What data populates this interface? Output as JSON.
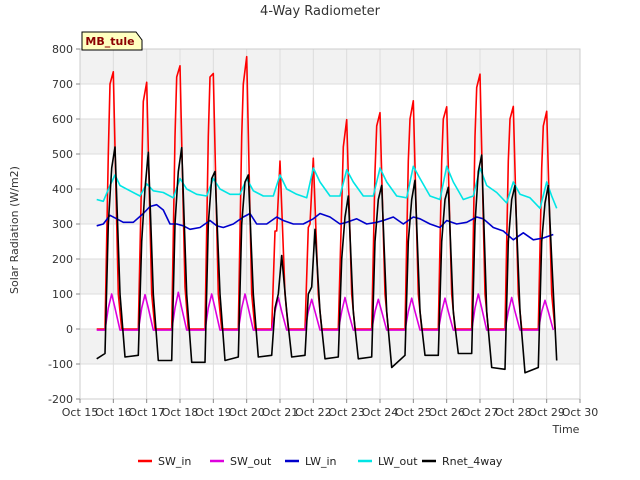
{
  "chart_data": {
    "type": "line",
    "title": "4-Way Radiometer",
    "xlabel": "Time",
    "ylabel": "Solar Radiation (W/m2)",
    "site_label": "MB_tule",
    "xlim": [
      15,
      30
    ],
    "ylim": [
      -200,
      800
    ],
    "x_ticks": [
      {
        "value": 15,
        "label": "Oct 15"
      },
      {
        "value": 16,
        "label": "Oct 16"
      },
      {
        "value": 17,
        "label": "Oct 17"
      },
      {
        "value": 18,
        "label": "Oct 18"
      },
      {
        "value": 19,
        "label": "Oct 19"
      },
      {
        "value": 20,
        "label": "Oct 20"
      },
      {
        "value": 21,
        "label": "Oct 21"
      },
      {
        "value": 22,
        "label": "Oct 22"
      },
      {
        "value": 23,
        "label": "Oct 23"
      },
      {
        "value": 24,
        "label": "Oct 24"
      },
      {
        "value": 25,
        "label": "Oct 25"
      },
      {
        "value": 26,
        "label": "Oct 26"
      },
      {
        "value": 27,
        "label": "Oct 27"
      },
      {
        "value": 28,
        "label": "Oct 28"
      },
      {
        "value": 29,
        "label": "Oct 29"
      },
      {
        "value": 30,
        "label": "Oct 30"
      }
    ],
    "y_ticks": [
      {
        "value": -200,
        "label": "-200"
      },
      {
        "value": -100,
        "label": "-100"
      },
      {
        "value": 0,
        "label": "0"
      },
      {
        "value": 100,
        "label": "100"
      },
      {
        "value": 200,
        "label": "200"
      },
      {
        "value": 300,
        "label": "300"
      },
      {
        "value": 400,
        "label": "400"
      },
      {
        "value": 500,
        "label": "500"
      },
      {
        "value": 600,
        "label": "600"
      },
      {
        "value": 700,
        "label": "700"
      },
      {
        "value": 800,
        "label": "800"
      }
    ],
    "grid": true,
    "legend_position": "bottom",
    "series": [
      {
        "name": "SW_in",
        "color": "#ff0000",
        "x": [
          15.5,
          15.75,
          15.85,
          15.9,
          16.0,
          16.15,
          16.25,
          16.75,
          16.85,
          16.9,
          17.0,
          17.15,
          17.25,
          17.75,
          17.85,
          17.9,
          18.0,
          18.15,
          18.25,
          18.75,
          18.85,
          18.9,
          19.0,
          19.15,
          19.25,
          19.75,
          19.85,
          19.9,
          20.0,
          20.15,
          20.25,
          20.75,
          20.85,
          20.9,
          21.0,
          21.15,
          21.25,
          21.75,
          21.85,
          21.9,
          22.0,
          22.15,
          22.25,
          22.75,
          22.85,
          22.9,
          23.0,
          23.15,
          23.25,
          23.75,
          23.85,
          23.9,
          24.0,
          24.15,
          24.25,
          24.75,
          24.85,
          24.9,
          25.0,
          25.15,
          25.25,
          25.75,
          25.85,
          25.9,
          26.0,
          26.15,
          26.25,
          26.75,
          26.85,
          26.9,
          27.0,
          27.15,
          27.25,
          27.75,
          27.85,
          27.9,
          28.0,
          28.15,
          28.25,
          28.75,
          28.85,
          28.9,
          29.0,
          29.15,
          29.25
        ],
        "y": [
          0,
          0,
          500,
          700,
          735,
          100,
          0,
          0,
          450,
          650,
          705,
          100,
          0,
          0,
          550,
          720,
          752,
          120,
          0,
          0,
          550,
          720,
          730,
          100,
          0,
          0,
          550,
          700,
          778,
          100,
          0,
          0,
          280,
          280,
          480,
          100,
          0,
          0,
          290,
          300,
          488,
          100,
          0,
          0,
          350,
          520,
          598,
          100,
          0,
          0,
          450,
          580,
          618,
          100,
          0,
          0,
          480,
          600,
          652,
          100,
          0,
          0,
          480,
          600,
          635,
          100,
          0,
          0,
          550,
          690,
          728,
          100,
          0,
          0,
          480,
          600,
          636,
          100,
          0,
          0,
          460,
          580,
          622,
          100,
          0
        ]
      },
      {
        "name": "SW_out",
        "color": "#dd00dd",
        "x": [
          15.5,
          15.75,
          15.85,
          15.95,
          16.05,
          16.2,
          16.75,
          16.85,
          16.95,
          17.05,
          17.2,
          17.75,
          17.85,
          17.95,
          18.05,
          18.2,
          18.75,
          18.85,
          18.95,
          19.05,
          19.2,
          19.75,
          19.85,
          19.95,
          20.05,
          20.2,
          20.75,
          20.85,
          20.95,
          21.05,
          21.2,
          21.75,
          21.85,
          21.95,
          22.05,
          22.2,
          22.75,
          22.85,
          22.95,
          23.05,
          23.2,
          23.75,
          23.85,
          23.95,
          24.05,
          24.2,
          24.75,
          24.85,
          24.95,
          25.05,
          25.2,
          25.75,
          25.85,
          25.95,
          26.05,
          26.2,
          26.75,
          26.85,
          26.95,
          27.05,
          27.2,
          27.75,
          27.85,
          27.95,
          28.05,
          28.2,
          28.75,
          28.85,
          28.95,
          29.05,
          29.2
        ],
        "y": [
          -3,
          -3,
          60,
          100,
          60,
          -3,
          -3,
          60,
          98,
          60,
          -3,
          -3,
          60,
          105,
          60,
          -3,
          -3,
          60,
          100,
          60,
          -3,
          -3,
          60,
          100,
          60,
          -3,
          -3,
          50,
          90,
          50,
          -3,
          -3,
          50,
          85,
          50,
          -3,
          -3,
          50,
          90,
          50,
          -3,
          -3,
          50,
          85,
          50,
          -3,
          -3,
          50,
          88,
          50,
          -3,
          -3,
          50,
          88,
          50,
          -3,
          -3,
          60,
          100,
          60,
          -3,
          -3,
          50,
          90,
          50,
          -3,
          -3,
          50,
          82,
          50,
          -3
        ]
      },
      {
        "name": "LW_in",
        "color": "#0000cc",
        "x": [
          15.5,
          15.7,
          15.9,
          16.1,
          16.3,
          16.6,
          16.9,
          17.1,
          17.3,
          17.5,
          17.7,
          17.9,
          18.1,
          18.3,
          18.6,
          18.9,
          19.1,
          19.3,
          19.6,
          19.9,
          20.1,
          20.3,
          20.6,
          20.9,
          21.1,
          21.4,
          21.7,
          22.0,
          22.2,
          22.5,
          22.8,
          23.0,
          23.3,
          23.6,
          23.9,
          24.1,
          24.4,
          24.7,
          25.0,
          25.2,
          25.5,
          25.8,
          26.0,
          26.3,
          26.6,
          26.9,
          27.1,
          27.4,
          27.7,
          28.0,
          28.3,
          28.6,
          28.9,
          29.2
        ],
        "y": [
          295,
          300,
          325,
          315,
          305,
          305,
          330,
          350,
          355,
          340,
          300,
          300,
          295,
          285,
          290,
          310,
          295,
          290,
          300,
          320,
          330,
          300,
          300,
          320,
          310,
          300,
          300,
          315,
          330,
          320,
          300,
          305,
          315,
          300,
          305,
          310,
          320,
          300,
          320,
          315,
          300,
          290,
          310,
          300,
          305,
          320,
          315,
          290,
          280,
          255,
          275,
          255,
          260,
          270
        ]
      },
      {
        "name": "LW_out",
        "color": "#00e5e5",
        "x": [
          15.5,
          15.7,
          15.9,
          16.05,
          16.2,
          16.5,
          16.8,
          17.0,
          17.2,
          17.5,
          17.8,
          18.0,
          18.2,
          18.5,
          18.8,
          19.0,
          19.2,
          19.5,
          19.8,
          20.0,
          20.2,
          20.5,
          20.8,
          21.0,
          21.2,
          21.5,
          21.8,
          22.0,
          22.2,
          22.5,
          22.8,
          23.0,
          23.2,
          23.5,
          23.8,
          24.0,
          24.2,
          24.5,
          24.8,
          25.0,
          25.2,
          25.5,
          25.8,
          26.0,
          26.2,
          26.5,
          26.8,
          27.0,
          27.2,
          27.5,
          27.8,
          28.0,
          28.2,
          28.5,
          28.8,
          29.0,
          29.15,
          29.3
        ],
        "y": [
          370,
          365,
          410,
          440,
          410,
          395,
          380,
          415,
          395,
          390,
          375,
          430,
          400,
          385,
          380,
          430,
          400,
          385,
          385,
          430,
          395,
          380,
          380,
          440,
          400,
          385,
          375,
          460,
          420,
          380,
          380,
          455,
          420,
          380,
          380,
          460,
          420,
          380,
          375,
          465,
          430,
          380,
          370,
          465,
          420,
          370,
          380,
          460,
          410,
          390,
          360,
          420,
          385,
          375,
          345,
          420,
          380,
          345
        ]
      },
      {
        "name": "Rnet_4way",
        "color": "#000000",
        "x": [
          15.5,
          15.75,
          15.85,
          15.95,
          16.05,
          16.2,
          16.35,
          16.75,
          16.85,
          16.95,
          17.05,
          17.2,
          17.35,
          17.75,
          17.85,
          17.95,
          18.05,
          18.2,
          18.35,
          18.75,
          18.85,
          18.95,
          19.05,
          19.2,
          19.35,
          19.75,
          19.85,
          19.95,
          20.05,
          20.2,
          20.35,
          20.75,
          20.85,
          20.95,
          21.05,
          21.2,
          21.35,
          21.75,
          21.85,
          21.95,
          22.05,
          22.2,
          22.35,
          22.75,
          22.85,
          22.95,
          23.05,
          23.2,
          23.35,
          23.75,
          23.85,
          23.95,
          24.05,
          24.2,
          24.35,
          24.75,
          24.85,
          24.95,
          25.05,
          25.2,
          25.35,
          25.75,
          25.85,
          25.95,
          26.05,
          26.2,
          26.35,
          26.75,
          26.85,
          26.95,
          27.05,
          27.2,
          27.35,
          27.75,
          27.85,
          27.95,
          28.05,
          28.2,
          28.35,
          28.75,
          28.85,
          28.95,
          29.05,
          29.15,
          29.3
        ],
        "y": [
          -85,
          -70,
          300,
          460,
          520,
          100,
          -80,
          -75,
          250,
          400,
          505,
          100,
          -90,
          -90,
          300,
          450,
          518,
          100,
          -95,
          -95,
          300,
          430,
          450,
          100,
          -90,
          -80,
          300,
          420,
          440,
          100,
          -80,
          -75,
          60,
          100,
          210,
          50,
          -80,
          -75,
          100,
          120,
          285,
          50,
          -85,
          -80,
          200,
          320,
          380,
          50,
          -85,
          -80,
          250,
          370,
          410,
          50,
          -110,
          -75,
          250,
          370,
          425,
          50,
          -75,
          -75,
          250,
          370,
          405,
          50,
          -70,
          -70,
          300,
          450,
          497,
          50,
          -110,
          -115,
          250,
          370,
          410,
          50,
          -125,
          -110,
          250,
          360,
          410,
          200,
          -90
        ]
      }
    ]
  }
}
